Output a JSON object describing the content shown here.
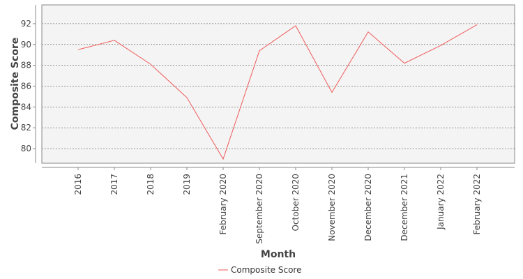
{
  "chart_data": {
    "type": "line",
    "title": "",
    "xlabel": "Month",
    "ylabel": "Composite Score",
    "categories": [
      "2016",
      "2017",
      "2018",
      "2019",
      "February 2020",
      "September 2020",
      "October 2020",
      "November 2020",
      "December 2020",
      "December 2021",
      "January 2022",
      "February 2022"
    ],
    "series": [
      {
        "name": "Composite Score",
        "color": "#f05a5a",
        "values": [
          89.5,
          90.4,
          88.1,
          84.9,
          79.0,
          89.4,
          91.8,
          85.4,
          91.2,
          88.2,
          89.9,
          91.9
        ]
      }
    ],
    "ylim": [
      78.6,
      93.8
    ],
    "yticks": [
      80,
      82,
      84,
      86,
      88,
      90,
      92
    ],
    "grid": true,
    "legend": "bottom"
  }
}
